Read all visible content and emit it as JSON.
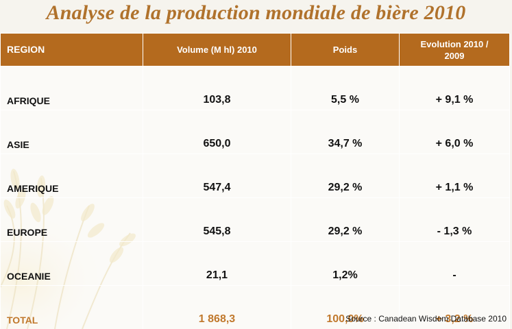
{
  "title": "Analyse de la production mondiale de bière 2010",
  "table": {
    "headers": {
      "region": "REGION",
      "volume": "Volume (M hl) 2010",
      "poids": "Poids",
      "evolution_line1": "Evolution 2010 /",
      "evolution_line2": "2009"
    },
    "rows": [
      {
        "region": "AFRIQUE",
        "volume": "103,8",
        "poids": "5,5 %",
        "evolution": "+ 9,1 %"
      },
      {
        "region": "ASIE",
        "volume": "650,0",
        "poids": "34,7 %",
        "evolution": "+ 6,0 %"
      },
      {
        "region": "AMERIQUE",
        "volume": "547,4",
        "poids": "29,2 %",
        "evolution": "+ 1,1 %"
      },
      {
        "region": "EUROPE",
        "volume": "545,8",
        "poids": "29,2 %",
        "evolution": "- 1,3 %"
      },
      {
        "region": "OCEANIE",
        "volume": "21,1",
        "poids": "1,2%",
        "evolution": "-"
      }
    ],
    "total": {
      "region": "TOTAL",
      "volume": "1 868,3",
      "poids": "100,0%",
      "evolution": "+ 3,2 %"
    }
  },
  "source": "Source : Canadean Wisdom  Database 2010",
  "colors": {
    "header_bg": "#b46a1e",
    "title": "#b0722c",
    "total_text": "#c0782c"
  },
  "decoration": "wheat-ears-illustration"
}
